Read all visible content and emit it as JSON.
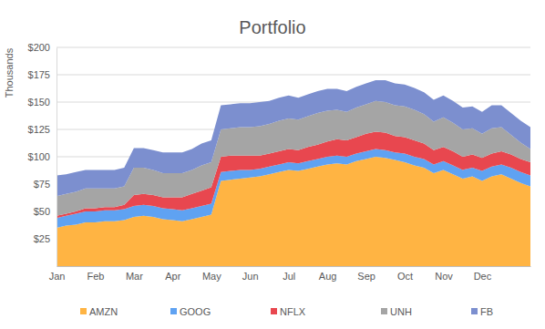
{
  "chart_data": {
    "type": "area",
    "title": "Portfolio",
    "y_label": "Thousands",
    "stacked": true,
    "grid": true,
    "legend": "bottom",
    "categories": [
      "Jan",
      null,
      null,
      null,
      "Feb",
      null,
      null,
      null,
      "Mar",
      null,
      null,
      null,
      "Apr",
      null,
      null,
      null,
      "May",
      null,
      null,
      null,
      "Jun",
      null,
      null,
      null,
      "Jul",
      null,
      null,
      null,
      "Aug",
      null,
      null,
      null,
      "Sep",
      null,
      null,
      null,
      "Oct",
      null,
      null,
      null,
      "Nov",
      null,
      null,
      null,
      "Dec",
      null,
      null,
      null,
      null,
      null
    ],
    "ylim": [
      0,
      200
    ],
    "yticks": [
      {
        "value": 25,
        "label": "$25"
      },
      {
        "value": 50,
        "label": "$50"
      },
      {
        "value": 75,
        "label": "$75"
      },
      {
        "value": 100,
        "label": "$100"
      },
      {
        "value": 125,
        "label": "$125"
      },
      {
        "value": 150,
        "label": "$150"
      },
      {
        "value": 175,
        "label": "$175"
      },
      {
        "value": 200,
        "label": "$200"
      }
    ],
    "series": [
      {
        "name": "AMZN",
        "color": "#FFB443",
        "values": [
          35,
          37,
          38,
          40,
          40,
          41,
          41,
          42,
          45,
          46,
          45,
          43,
          42,
          41,
          43,
          45,
          47,
          78,
          79,
          80,
          81,
          82,
          84,
          86,
          88,
          87,
          89,
          91,
          93,
          94,
          93,
          96,
          98,
          100,
          99,
          97,
          95,
          92,
          90,
          85,
          88,
          84,
          80,
          82,
          78,
          82,
          84,
          80,
          76,
          73
        ]
      },
      {
        "name": "GOOG",
        "color": "#5FA2F2",
        "values": [
          9,
          9,
          10,
          10,
          10,
          10,
          10,
          10,
          10,
          10,
          10,
          10,
          10,
          10,
          10,
          10,
          10,
          8,
          8,
          8,
          7,
          7,
          7,
          7,
          7,
          7,
          7,
          7,
          7,
          7,
          7,
          7,
          7,
          7,
          7,
          7,
          8,
          8,
          8,
          8,
          8,
          8,
          8,
          8,
          9,
          9,
          9,
          10,
          10,
          10
        ]
      },
      {
        "name": "NFLX",
        "color": "#E8474F",
        "values": [
          2,
          2,
          2,
          3,
          3,
          3,
          3,
          4,
          10,
          10,
          10,
          10,
          11,
          12,
          13,
          14,
          15,
          14,
          14,
          13,
          13,
          12,
          12,
          12,
          12,
          12,
          13,
          13,
          14,
          15,
          15,
          15,
          16,
          16,
          16,
          15,
          15,
          15,
          14,
          13,
          13,
          13,
          12,
          12,
          12,
          12,
          12,
          12,
          12,
          12
        ]
      },
      {
        "name": "UNH",
        "color": "#A5A5A5",
        "values": [
          18,
          18,
          18,
          18,
          18,
          17,
          17,
          17,
          25,
          24,
          23,
          22,
          22,
          22,
          22,
          23,
          23,
          25,
          25,
          26,
          26,
          27,
          27,
          28,
          28,
          28,
          28,
          29,
          28,
          27,
          26,
          27,
          27,
          28,
          28,
          28,
          28,
          28,
          27,
          26,
          27,
          26,
          25,
          24,
          22,
          23,
          22,
          18,
          15,
          12
        ]
      },
      {
        "name": "FB",
        "color": "#7C8FCF",
        "values": [
          19,
          18,
          18,
          17,
          17,
          17,
          17,
          17,
          18,
          18,
          18,
          19,
          19,
          19,
          19,
          20,
          20,
          22,
          22,
          22,
          22,
          22,
          21,
          21,
          21,
          20,
          20,
          20,
          20,
          19,
          19,
          19,
          19,
          19,
          20,
          20,
          20,
          20,
          20,
          20,
          20,
          20,
          20,
          20,
          20,
          21,
          20,
          20,
          20,
          20
        ]
      }
    ]
  }
}
